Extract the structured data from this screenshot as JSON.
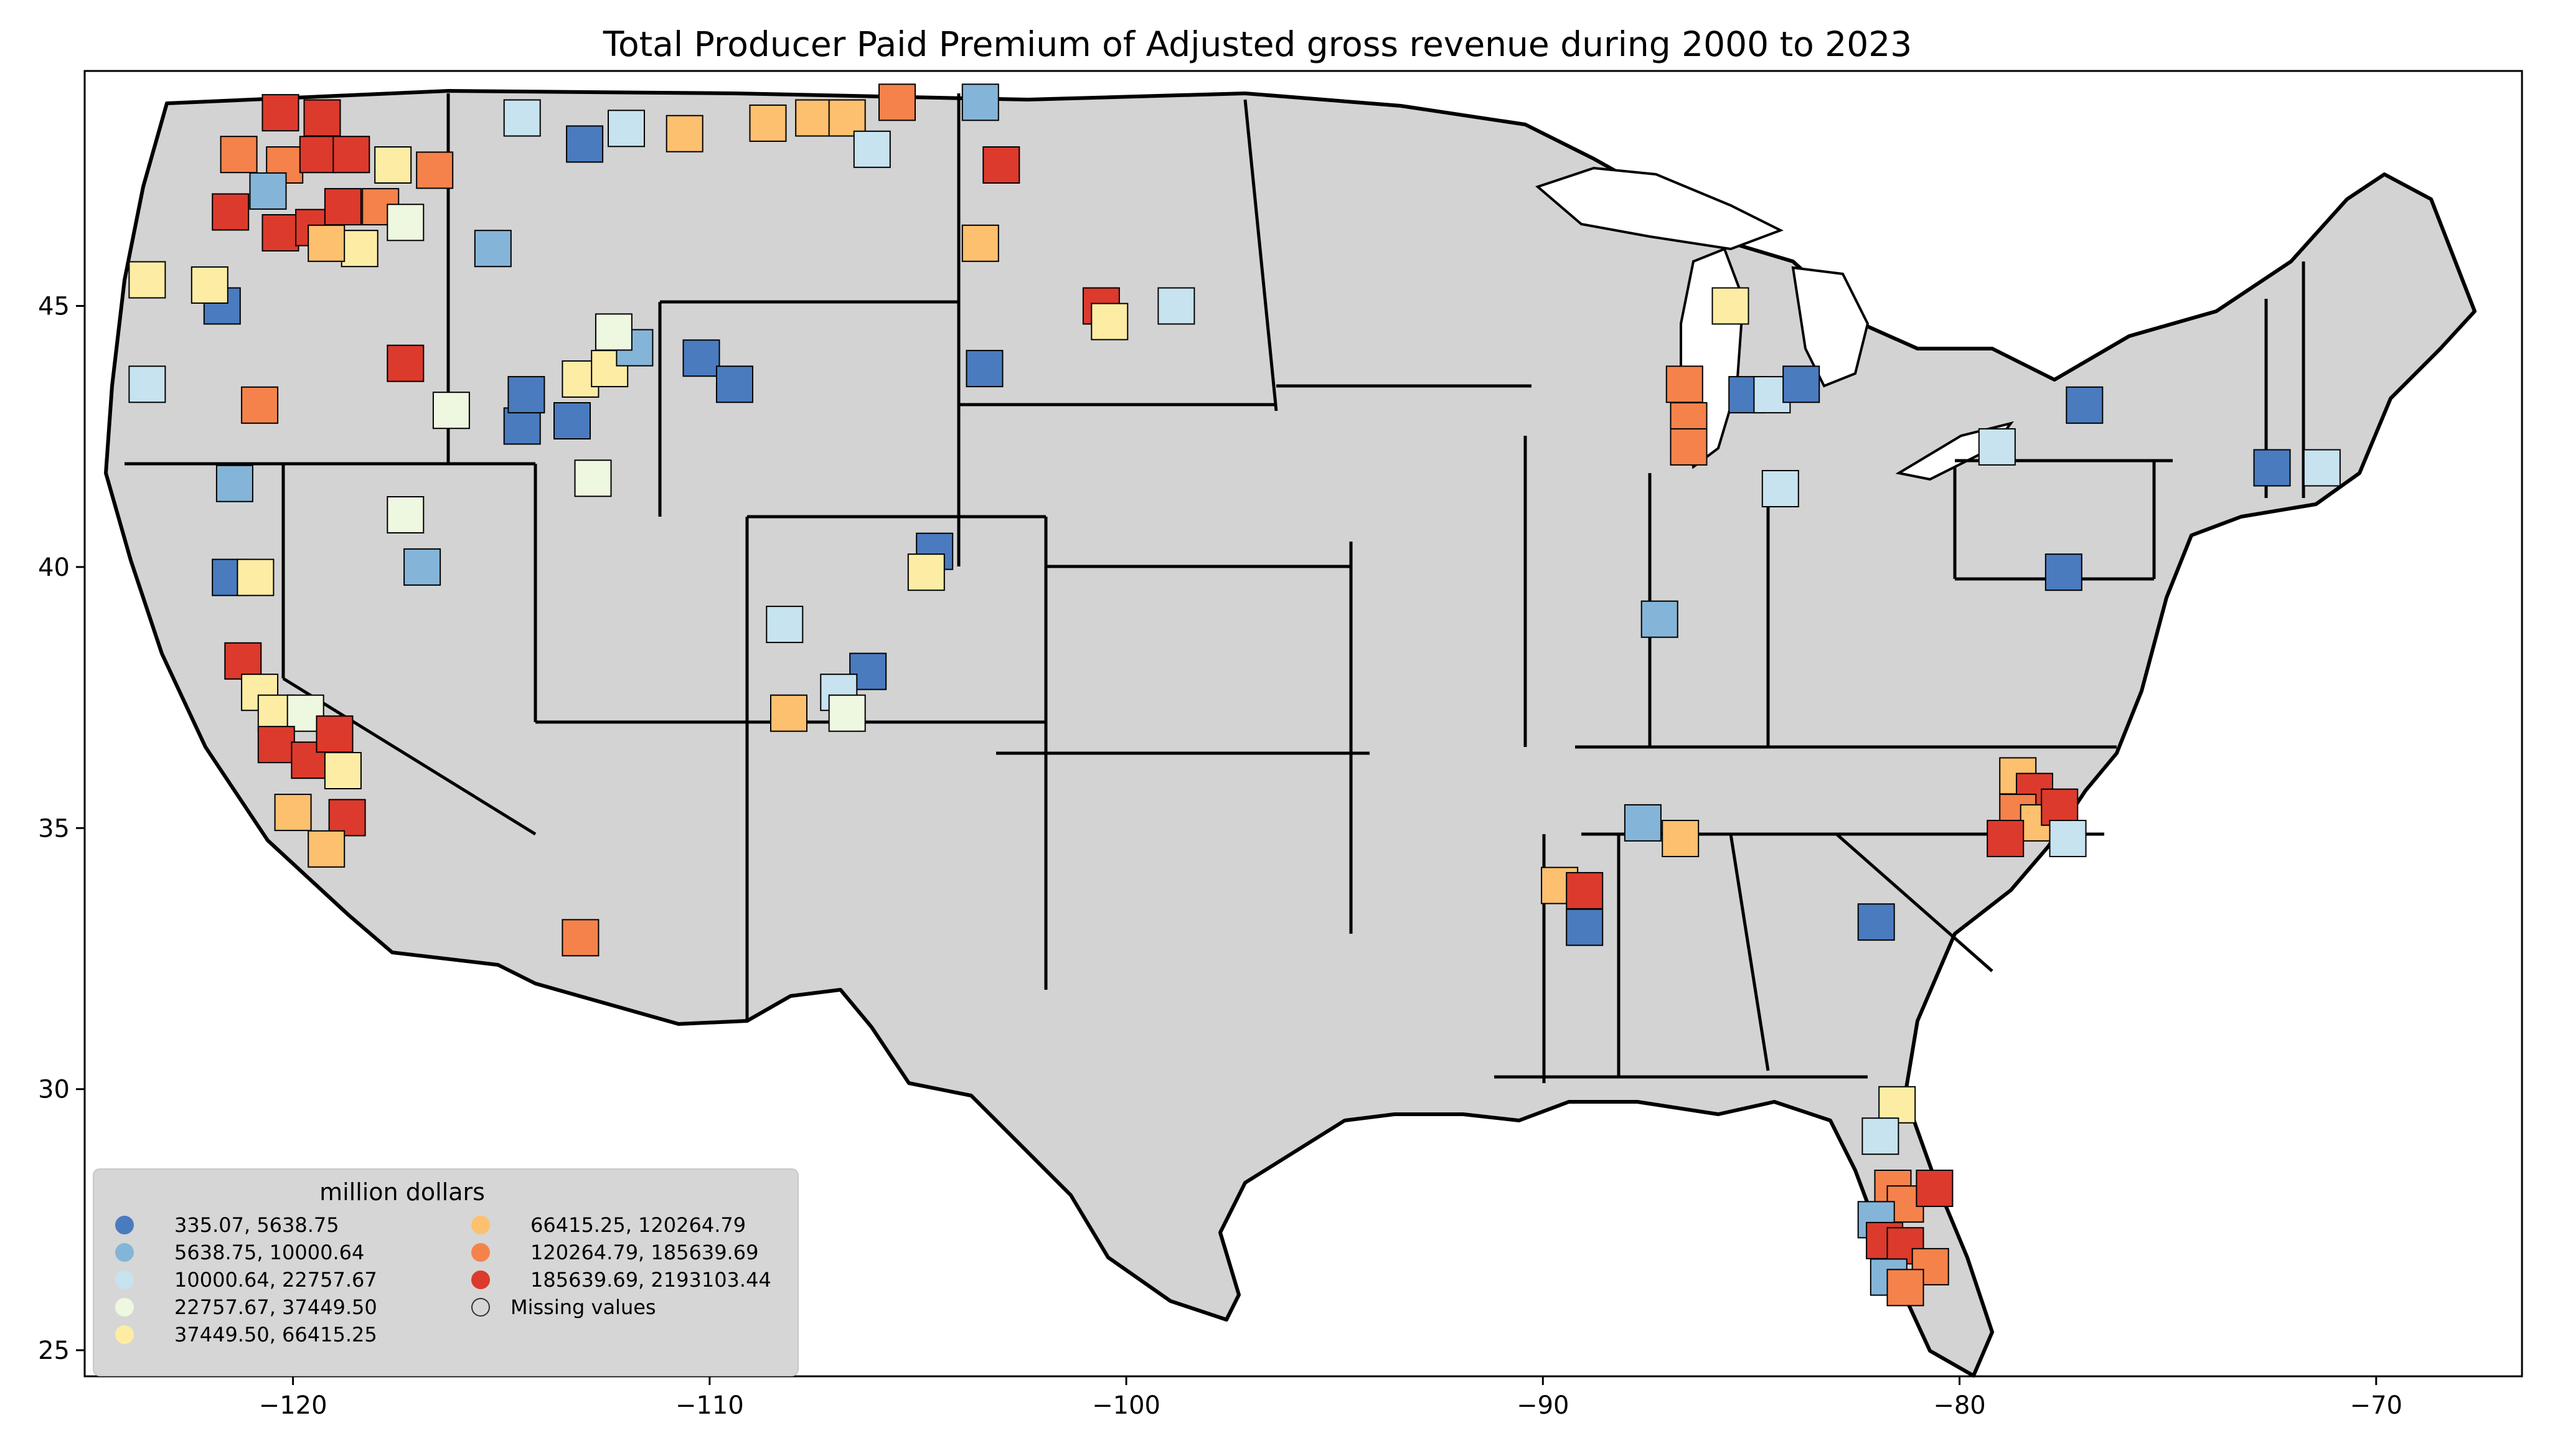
{
  "chart_data": {
    "type": "choropleth",
    "title": "Total Producer Paid Premium of Adjusted gross revenue during 2000 to 2023",
    "xlim": [
      -125,
      -66.5
    ],
    "ylim": [
      24.5,
      49.5
    ],
    "x_ticks": [
      -120,
      -110,
      -100,
      -90,
      -80,
      -70
    ],
    "y_ticks": [
      25,
      30,
      35,
      40,
      45
    ],
    "x_tick_labels": [
      "−120",
      "−110",
      "−100",
      "−90",
      "−80",
      "−70"
    ],
    "y_tick_labels": [
      "25",
      "30",
      "35",
      "40",
      "45"
    ],
    "missing_color": "#d3d3d3",
    "legend": {
      "title": "million dollars",
      "placement": "lower-left",
      "entries": [
        {
          "label": "335.07,    5638.75",
          "color": "#4a7bbf"
        },
        {
          "label": "5638.75,   10000.64",
          "color": "#84b5d8"
        },
        {
          "label": "10000.64,   22757.67",
          "color": "#c6e3ef"
        },
        {
          "label": "22757.67,   37449.50",
          "color": "#eef7df"
        },
        {
          "label": "37449.50,   66415.25",
          "color": "#fdeda4"
        },
        {
          "label": "66415.25,  120264.79",
          "color": "#fcc06f"
        },
        {
          "label": "120264.79,  185639.69",
          "color": "#f5824b"
        },
        {
          "label": "185639.69, 2193103.44",
          "color": "#dc3a2c"
        },
        {
          "label": "Missing values",
          "color": "#d3d3d3"
        }
      ]
    },
    "counties": [
      {
        "lon": -120.3,
        "lat": 48.7,
        "cls": 7
      },
      {
        "lon": -119.3,
        "lat": 48.6,
        "cls": 7
      },
      {
        "lon": -121.3,
        "lat": 47.9,
        "cls": 6
      },
      {
        "lon": -120.2,
        "lat": 47.7,
        "cls": 6
      },
      {
        "lon": -119.4,
        "lat": 47.9,
        "cls": 7
      },
      {
        "lon": -118.6,
        "lat": 47.9,
        "cls": 7
      },
      {
        "lon": -117.6,
        "lat": 47.7,
        "cls": 4
      },
      {
        "lon": -120.6,
        "lat": 47.2,
        "cls": 1
      },
      {
        "lon": -121.5,
        "lat": 46.8,
        "cls": 7
      },
      {
        "lon": -120.3,
        "lat": 46.4,
        "cls": 7
      },
      {
        "lon": -119.5,
        "lat": 46.5,
        "cls": 7
      },
      {
        "lon": -118.8,
        "lat": 46.9,
        "cls": 7
      },
      {
        "lon": -117.9,
        "lat": 46.9,
        "cls": 6
      },
      {
        "lon": -117.3,
        "lat": 46.6,
        "cls": 3
      },
      {
        "lon": -118.4,
        "lat": 46.1,
        "cls": 4
      },
      {
        "lon": -119.2,
        "lat": 46.2,
        "cls": 5
      },
      {
        "lon": -116.6,
        "lat": 47.6,
        "cls": 6
      },
      {
        "lon": -115.2,
        "lat": 46.1,
        "cls": 1
      },
      {
        "lon": -121.7,
        "lat": 45.0,
        "cls": 0
      },
      {
        "lon": -122.0,
        "lat": 45.4,
        "cls": 4
      },
      {
        "lon": -123.5,
        "lat": 45.5,
        "cls": 4
      },
      {
        "lon": -120.8,
        "lat": 43.1,
        "cls": 6
      },
      {
        "lon": -117.3,
        "lat": 43.9,
        "cls": 7
      },
      {
        "lon": -116.2,
        "lat": 43.0,
        "cls": 3
      },
      {
        "lon": -114.5,
        "lat": 42.7,
        "cls": 0
      },
      {
        "lon": -114.4,
        "lat": 43.3,
        "cls": 0
      },
      {
        "lon": -113.3,
        "lat": 42.8,
        "cls": 0
      },
      {
        "lon": -113.1,
        "lat": 43.6,
        "cls": 4
      },
      {
        "lon": -112.4,
        "lat": 43.8,
        "cls": 4
      },
      {
        "lon": -111.8,
        "lat": 44.2,
        "cls": 1
      },
      {
        "lon": -112.3,
        "lat": 44.5,
        "cls": 3
      },
      {
        "lon": -112.8,
        "lat": 41.7,
        "cls": 3
      },
      {
        "lon": -123.5,
        "lat": 43.5,
        "cls": 2
      },
      {
        "lon": -121.4,
        "lat": 41.6,
        "cls": 1
      },
      {
        "lon": -117.3,
        "lat": 41.0,
        "cls": 3
      },
      {
        "lon": -116.9,
        "lat": 40.0,
        "cls": 1
      },
      {
        "lon": -121.5,
        "lat": 39.8,
        "cls": 0
      },
      {
        "lon": -120.9,
        "lat": 39.8,
        "cls": 4
      },
      {
        "lon": -121.2,
        "lat": 38.2,
        "cls": 7
      },
      {
        "lon": -120.8,
        "lat": 37.6,
        "cls": 4
      },
      {
        "lon": -120.4,
        "lat": 37.2,
        "cls": 4
      },
      {
        "lon": -119.7,
        "lat": 37.2,
        "cls": 3
      },
      {
        "lon": -120.4,
        "lat": 36.6,
        "cls": 7
      },
      {
        "lon": -119.6,
        "lat": 36.3,
        "cls": 7
      },
      {
        "lon": -119.0,
        "lat": 36.8,
        "cls": 7
      },
      {
        "lon": -118.8,
        "lat": 36.1,
        "cls": 4
      },
      {
        "lon": -118.7,
        "lat": 35.2,
        "cls": 7
      },
      {
        "lon": -120.0,
        "lat": 35.3,
        "cls": 5
      },
      {
        "lon": -119.2,
        "lat": 34.6,
        "cls": 5
      },
      {
        "lon": -113.1,
        "lat": 32.9,
        "cls": 6
      },
      {
        "lon": -114.5,
        "lat": 48.6,
        "cls": 2
      },
      {
        "lon": -113.0,
        "lat": 48.1,
        "cls": 0
      },
      {
        "lon": -112.0,
        "lat": 48.4,
        "cls": 2
      },
      {
        "lon": -110.6,
        "lat": 48.3,
        "cls": 5
      },
      {
        "lon": -108.6,
        "lat": 48.5,
        "cls": 5
      },
      {
        "lon": -107.5,
        "lat": 48.6,
        "cls": 5
      },
      {
        "lon": -106.7,
        "lat": 48.6,
        "cls": 5
      },
      {
        "lon": -106.1,
        "lat": 48.0,
        "cls": 2
      },
      {
        "lon": -105.5,
        "lat": 48.9,
        "cls": 6
      },
      {
        "lon": -110.2,
        "lat": 44.0,
        "cls": 0
      },
      {
        "lon": -109.4,
        "lat": 43.5,
        "cls": 0
      },
      {
        "lon": -104.6,
        "lat": 40.3,
        "cls": 0
      },
      {
        "lon": -104.8,
        "lat": 39.9,
        "cls": 4
      },
      {
        "lon": -108.2,
        "lat": 38.9,
        "cls": 2
      },
      {
        "lon": -106.2,
        "lat": 38.0,
        "cls": 0
      },
      {
        "lon": -106.9,
        "lat": 37.6,
        "cls": 2
      },
      {
        "lon": -108.1,
        "lat": 37.2,
        "cls": 5
      },
      {
        "lon": -106.7,
        "lat": 37.2,
        "cls": 3
      },
      {
        "lon": -103.5,
        "lat": 48.9,
        "cls": 1
      },
      {
        "lon": -103.0,
        "lat": 47.7,
        "cls": 7
      },
      {
        "lon": -103.5,
        "lat": 46.2,
        "cls": 5
      },
      {
        "lon": -100.6,
        "lat": 45.0,
        "cls": 7
      },
      {
        "lon": -100.4,
        "lat": 44.7,
        "cls": 4
      },
      {
        "lon": -98.8,
        "lat": 45.0,
        "cls": 2
      },
      {
        "lon": -103.4,
        "lat": 43.8,
        "cls": 0
      },
      {
        "lon": -86.6,
        "lat": 43.5,
        "cls": 6
      },
      {
        "lon": -86.5,
        "lat": 42.8,
        "cls": 6
      },
      {
        "lon": -86.5,
        "lat": 42.3,
        "cls": 6
      },
      {
        "lon": -85.1,
        "lat": 43.3,
        "cls": 0
      },
      {
        "lon": -84.5,
        "lat": 43.3,
        "cls": 2
      },
      {
        "lon": -83.8,
        "lat": 43.5,
        "cls": 0
      },
      {
        "lon": -85.5,
        "lat": 45.0,
        "cls": 4
      },
      {
        "lon": -84.3,
        "lat": 41.5,
        "cls": 2
      },
      {
        "lon": -87.2,
        "lat": 39.0,
        "cls": 1
      },
      {
        "lon": -79.1,
        "lat": 42.3,
        "cls": 2
      },
      {
        "lon": -77.0,
        "lat": 43.1,
        "cls": 0
      },
      {
        "lon": -72.5,
        "lat": 41.9,
        "cls": 0
      },
      {
        "lon": -71.3,
        "lat": 41.9,
        "cls": 2
      },
      {
        "lon": -77.5,
        "lat": 39.9,
        "cls": 0
      },
      {
        "lon": -78.6,
        "lat": 36.0,
        "cls": 5
      },
      {
        "lon": -78.2,
        "lat": 35.7,
        "cls": 7
      },
      {
        "lon": -78.6,
        "lat": 35.3,
        "cls": 6
      },
      {
        "lon": -78.1,
        "lat": 35.1,
        "cls": 5
      },
      {
        "lon": -77.6,
        "lat": 35.4,
        "cls": 7
      },
      {
        "lon": -78.9,
        "lat": 34.8,
        "cls": 7
      },
      {
        "lon": -77.4,
        "lat": 34.8,
        "cls": 2
      },
      {
        "lon": -86.7,
        "lat": 34.8,
        "cls": 5
      },
      {
        "lon": -87.6,
        "lat": 35.1,
        "cls": 1
      },
      {
        "lon": -89.6,
        "lat": 33.9,
        "cls": 5
      },
      {
        "lon": -89.0,
        "lat": 33.8,
        "cls": 7
      },
      {
        "lon": -89.0,
        "lat": 33.1,
        "cls": 0
      },
      {
        "lon": -82.0,
        "lat": 33.2,
        "cls": 0
      },
      {
        "lon": -81.5,
        "lat": 29.7,
        "cls": 4
      },
      {
        "lon": -81.9,
        "lat": 29.1,
        "cls": 2
      },
      {
        "lon": -81.6,
        "lat": 28.1,
        "cls": 6
      },
      {
        "lon": -81.3,
        "lat": 27.8,
        "cls": 6
      },
      {
        "lon": -80.6,
        "lat": 28.1,
        "cls": 7
      },
      {
        "lon": -82.0,
        "lat": 27.5,
        "cls": 1
      },
      {
        "lon": -81.8,
        "lat": 27.1,
        "cls": 7
      },
      {
        "lon": -81.3,
        "lat": 27.0,
        "cls": 7
      },
      {
        "lon": -80.7,
        "lat": 26.6,
        "cls": 6
      },
      {
        "lon": -81.7,
        "lat": 26.4,
        "cls": 1
      },
      {
        "lon": -81.3,
        "lat": 26.2,
        "cls": 6
      }
    ]
  }
}
